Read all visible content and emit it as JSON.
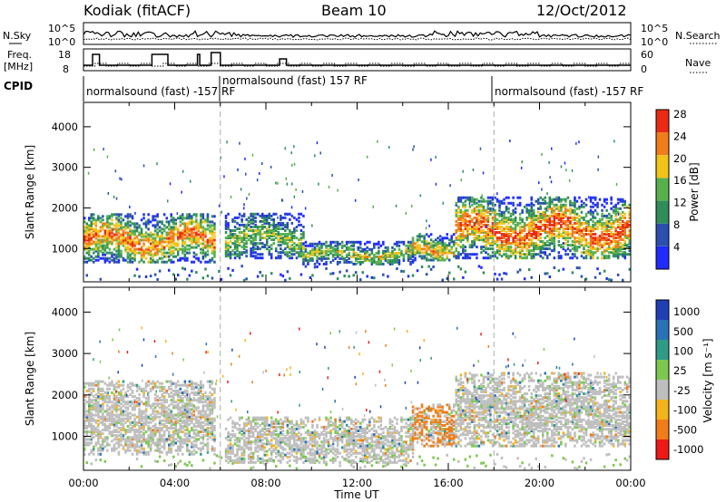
{
  "header": {
    "station": "Kodiak (fitACF)",
    "beam": "Beam 10",
    "date": "12/Oct/2012"
  },
  "strip": {
    "nsky_label": "N.Sky",
    "nsearch_label": "N.Search",
    "nsky_ticks": [
      "10^5",
      "10^0"
    ],
    "nsearch_ticks": [
      "10^5",
      "10^0"
    ],
    "freq_label_1": "Freq.",
    "freq_label_2": "[MHz]",
    "freq_ticks": [
      "18",
      "8"
    ],
    "nave_label": "Nave",
    "nave_ticks": [
      "60",
      "0"
    ],
    "cpid_label": "CPID",
    "cpid_segments": [
      {
        "text": "normalsound (fast) -157 RF"
      },
      {
        "text": "normalsound (fast) 157 RF"
      },
      {
        "text": "normalsound (fast) -157 RF"
      }
    ]
  },
  "colors": {
    "power": [
      "#1f2bff",
      "#2a4fb0",
      "#2f8d5a",
      "#56b14c",
      "#f2c318",
      "#f07d1a",
      "#ea2a14"
    ],
    "velocity": [
      "#1f3fb5",
      "#2a72b8",
      "#2f9a86",
      "#7cc84f",
      "#bebebe",
      "#f3b31a",
      "#f07d1a",
      "#ee1a16"
    ]
  },
  "chart_data": [
    {
      "type": "heatmap",
      "name": "power",
      "title": "",
      "xlabel": "Time UT",
      "ylabel": "Slant Range [km]",
      "x_ticks": [
        "00:00",
        "04:00",
        "08:00",
        "12:00",
        "16:00",
        "20:00",
        "00:00"
      ],
      "y_ticks": [
        "1000",
        "2000",
        "3000",
        "4000"
      ],
      "ylim": [
        180,
        4600
      ],
      "colorbar_label": "Power [dB]",
      "colorbar_ticks": [
        "4",
        "8",
        "12",
        "16",
        "20",
        "24",
        "28"
      ],
      "clim": [
        0,
        30
      ],
      "bands": [
        {
          "t0": 0.0,
          "t1": 5.7,
          "r0": 700,
          "r1": 1900,
          "peak": 0.85
        },
        {
          "t0": 6.2,
          "t1": 9.6,
          "r0": 800,
          "r1": 1900,
          "peak": 0.55
        },
        {
          "t0": 9.6,
          "t1": 14.4,
          "r0": 650,
          "r1": 1200,
          "peak": 0.6
        },
        {
          "t0": 14.4,
          "t1": 16.2,
          "r0": 750,
          "r1": 1400,
          "peak": 0.75
        },
        {
          "t0": 16.3,
          "t1": 24.0,
          "r0": 800,
          "r1": 2300,
          "peak": 0.9
        }
      ]
    },
    {
      "type": "heatmap",
      "name": "velocity",
      "title": "",
      "xlabel": "Time UT",
      "ylabel": "Slant Range [km]",
      "x_ticks": [
        "00:00",
        "04:00",
        "08:00",
        "12:00",
        "16:00",
        "20:00",
        "00:00"
      ],
      "y_ticks": [
        "1000",
        "2000",
        "3000",
        "4000"
      ],
      "ylim": [
        180,
        4600
      ],
      "colorbar_label": "Velocity [m s⁻¹]",
      "colorbar_ticks": [
        "1000",
        "500",
        "100",
        "25",
        "-25",
        "-100",
        "-500",
        "-1000"
      ],
      "bands": [
        {
          "t0": 0.0,
          "t1": 5.7,
          "r0": 600,
          "r1": 2400
        },
        {
          "t0": 6.2,
          "t1": 14.4,
          "r0": 400,
          "r1": 1500
        },
        {
          "t0": 14.4,
          "t1": 16.2,
          "r0": 800,
          "r1": 1800
        },
        {
          "t0": 16.3,
          "t1": 24.0,
          "r0": 800,
          "r1": 2600
        }
      ]
    }
  ]
}
